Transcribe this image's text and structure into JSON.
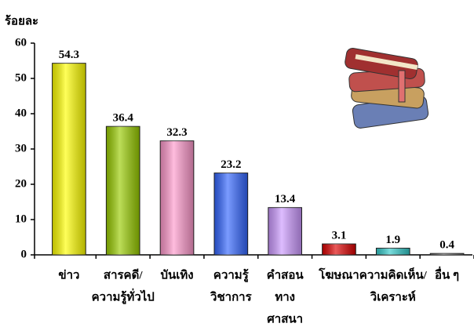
{
  "chart_data": {
    "type": "bar",
    "ylabel": "ร้อยละ",
    "categories": [
      [
        "ข่าว"
      ],
      [
        "สารคดี/",
        "ความรู้ทั่วไป"
      ],
      [
        "บันเทิง"
      ],
      [
        "ความรู้",
        "วิชาการ"
      ],
      [
        "คำสอน",
        "ทาง",
        "ศาสนา"
      ],
      [
        "โฆษณา"
      ],
      [
        "ความคิดเห็น/",
        "วิเคราะห์"
      ],
      [
        "อื่น ๆ"
      ]
    ],
    "values": [
      54.3,
      36.4,
      32.3,
      23.2,
      13.4,
      3.1,
      1.9,
      0.4
    ],
    "colors": [
      "#ffff00",
      "#99cc00",
      "#ff99cc",
      "#3366ff",
      "#cc99ff",
      "#dd0000",
      "#33cccc",
      "#999999"
    ],
    "ylim": [
      0,
      60
    ],
    "yticks": [
      0,
      10,
      20,
      30,
      40,
      50,
      60
    ]
  }
}
